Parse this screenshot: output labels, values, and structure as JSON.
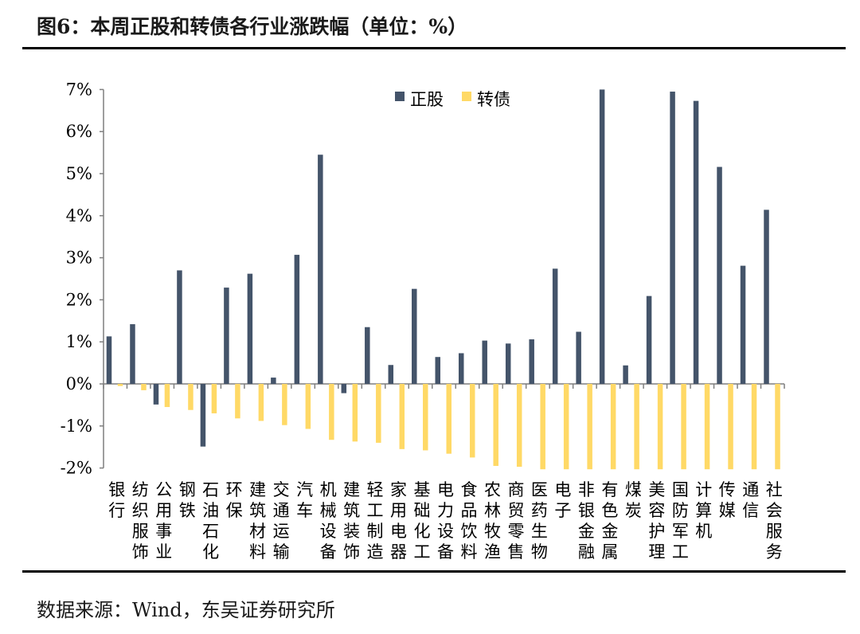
{
  "figure": {
    "title": "图6：本周正股和转债各行业涨跌幅（单位：%）",
    "source": "数据来源：Wind，东吴证券研究所"
  },
  "colors": {
    "stock": "#44546a",
    "bond": "#ffd966",
    "axis": "#7f7f7f"
  },
  "chart_data": {
    "type": "bar",
    "title": "本周正股和转债各行业涨跌幅（单位：%）",
    "xlabel": "",
    "ylabel": "",
    "ylim": [
      -2,
      7
    ],
    "yticks": [
      "-2%",
      "-1%",
      "0%",
      "1%",
      "2%",
      "3%",
      "4%",
      "5%",
      "6%",
      "7%"
    ],
    "legend_position": "top-center",
    "grid": false,
    "categories": [
      "银行",
      "纺织服饰",
      "公用事业",
      "钢铁",
      "石油石化",
      "环保",
      "建筑材料",
      "交通运输",
      "汽车",
      "机械设备",
      "建筑装饰",
      "轻工制造",
      "家用电器",
      "基础化工",
      "电力设备",
      "食品饮料",
      "农林牧渔",
      "商贸零售",
      "医药生物",
      "电子",
      "非银金融",
      "有色金属",
      "煤炭",
      "美容护理",
      "国防军工",
      "计算机",
      "传媒",
      "通信",
      "社会服务"
    ],
    "series": [
      {
        "name": "正股",
        "values": [
          1.13,
          1.42,
          -0.49,
          2.7,
          -1.49,
          2.29,
          2.62,
          0.15,
          3.07,
          5.45,
          -0.22,
          1.35,
          0.45,
          2.26,
          0.64,
          0.73,
          1.03,
          0.96,
          1.06,
          2.74,
          1.24,
          7.0,
          0.44,
          2.09,
          6.95,
          6.73,
          5.16,
          2.81,
          4.14
        ]
      },
      {
        "name": "转债",
        "values": [
          -0.05,
          -0.15,
          -0.55,
          -0.62,
          -0.7,
          -0.82,
          -0.88,
          -0.98,
          -1.07,
          -1.33,
          -1.37,
          -1.4,
          -1.55,
          -1.58,
          -1.66,
          -1.75,
          -1.95,
          -1.97,
          -2.03,
          -2.03,
          -2.03,
          -2.03,
          -2.03,
          -2.03,
          -2.03,
          -2.03,
          -2.03,
          -2.03,
          -2.03
        ]
      }
    ]
  }
}
